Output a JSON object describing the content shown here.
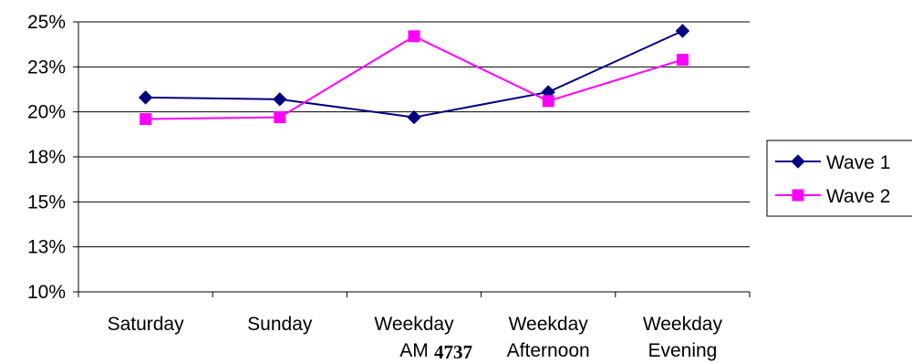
{
  "chart_data": {
    "type": "line",
    "categories": [
      [
        "Saturday"
      ],
      [
        "Sunday"
      ],
      [
        "Weekday",
        "AM"
      ],
      [
        "Weekday",
        "Afternoon"
      ],
      [
        "Weekday",
        "Evening"
      ]
    ],
    "series": [
      {
        "name": "Wave 1",
        "color": "#000080",
        "marker": "diamond",
        "values": [
          20.8,
          20.7,
          19.7,
          21.1,
          24.5
        ]
      },
      {
        "name": "Wave 2",
        "color": "#FF00FF",
        "marker": "square",
        "values": [
          19.6,
          19.7,
          24.2,
          20.6,
          22.9
        ]
      }
    ],
    "yticks": [
      "10%",
      "13%",
      "15%",
      "18%",
      "20%",
      "23%",
      "25%"
    ],
    "ylim": [
      10,
      25
    ],
    "grid": true,
    "legend": "right"
  },
  "page_number": "4737"
}
